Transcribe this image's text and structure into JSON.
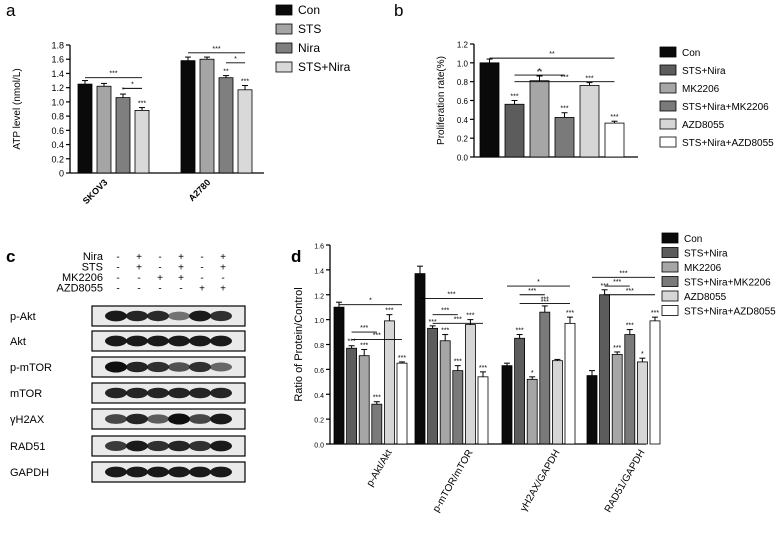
{
  "panels": {
    "a": {
      "label": "a",
      "chart_data": {
        "type": "bar",
        "ylabel": "ATP level (nmol/L)",
        "ylim": [
          0,
          1.8
        ],
        "yticks": [
          "0",
          "0.2",
          "0.4",
          "0.6",
          "0.8",
          "1.0",
          "1.2",
          "1.4",
          "1.6",
          "1.8"
        ],
        "categories": [
          "SKOV3",
          "A2780"
        ],
        "series": [
          {
            "name": "Con",
            "values": [
              1.25,
              1.58
            ],
            "errors": [
              0.05,
              0.05
            ],
            "sig": [
              "",
              ""
            ]
          },
          {
            "name": "STS",
            "values": [
              1.22,
              1.6
            ],
            "errors": [
              0.04,
              0.03
            ],
            "sig": [
              "",
              ""
            ]
          },
          {
            "name": "Nira",
            "values": [
              1.06,
              1.34
            ],
            "errors": [
              0.05,
              0.03
            ],
            "sig": [
              "*",
              "**"
            ]
          },
          {
            "name": "STS+Nira",
            "values": [
              0.88,
              1.17
            ],
            "errors": [
              0.04,
              0.06
            ],
            "sig": [
              "***",
              "***"
            ]
          }
        ],
        "brackets": [
          {
            "cat": 0,
            "from": 0,
            "to": 3,
            "y": 1.34,
            "label": "***"
          },
          {
            "cat": 0,
            "from": 2,
            "to": 3,
            "y": 1.19,
            "label": "*"
          },
          {
            "cat": 1,
            "from": 0,
            "to": 3,
            "y": 1.69,
            "label": "***"
          },
          {
            "cat": 1,
            "from": 2,
            "to": 3,
            "y": 1.55,
            "label": "*"
          }
        ]
      }
    },
    "b": {
      "label": "b",
      "chart_data": {
        "type": "bar",
        "ylabel": "Proliferation rate(%)",
        "ylim": [
          0,
          1.2
        ],
        "yticks": [
          "0.0",
          "0.2",
          "0.4",
          "0.6",
          "0.8",
          "1.0",
          "1.2"
        ],
        "categories": [
          "Con",
          "STS+Nira",
          "MK2206",
          "STS+Nira+MK2206",
          "AZD8055",
          "STS+Nira+AZD8055"
        ],
        "values": [
          1.0,
          0.56,
          0.81,
          0.42,
          0.76,
          0.36
        ],
        "errors": [
          0.04,
          0.04,
          0.05,
          0.05,
          0.03,
          0.02
        ],
        "sig": [
          "",
          "***",
          "**",
          "***",
          "***",
          "***"
        ],
        "brackets": [
          {
            "from": 1,
            "to": 3,
            "y": 0.87,
            "label": "*"
          },
          {
            "from": 1,
            "to": 5,
            "y": 0.8,
            "label": "***"
          },
          {
            "from": 0,
            "to": 5,
            "y": 1.05,
            "label": "**"
          }
        ]
      }
    },
    "c": {
      "label": "c",
      "rows": [
        {
          "name": "Nira",
          "marks": [
            "-",
            "+",
            "-",
            "+",
            "-",
            "+"
          ]
        },
        {
          "name": "STS",
          "marks": [
            "-",
            "+",
            "-",
            "+",
            "-",
            "+"
          ]
        },
        {
          "name": "MK2206",
          "marks": [
            "-",
            "-",
            "+",
            "+",
            "-",
            "-"
          ]
        },
        {
          "name": "AZD8055",
          "marks": [
            "-",
            "-",
            "-",
            "-",
            "+",
            "+"
          ]
        }
      ],
      "blots": [
        "p-Akt",
        "Akt",
        "p-mTOR",
        "mTOR",
        "γH2AX",
        "RAD51",
        "GAPDH"
      ],
      "intensities": [
        [
          0.95,
          0.9,
          0.88,
          0.55,
          0.95,
          0.85
        ],
        [
          0.95,
          0.95,
          0.95,
          0.95,
          0.95,
          0.95
        ],
        [
          1.0,
          0.9,
          0.85,
          0.7,
          0.85,
          0.6
        ],
        [
          0.9,
          0.9,
          0.9,
          0.9,
          0.9,
          0.9
        ],
        [
          0.75,
          0.9,
          0.65,
          1.0,
          0.75,
          0.95
        ],
        [
          0.8,
          0.95,
          0.85,
          0.9,
          0.85,
          0.95
        ],
        [
          0.95,
          0.95,
          0.95,
          0.95,
          0.95,
          0.95
        ]
      ]
    },
    "d": {
      "label": "d",
      "chart_data": {
        "type": "bar",
        "ylabel": "Ratio of Protein/Control",
        "ylim": [
          0,
          1.6
        ],
        "yticks": [
          "0.0",
          "0.2",
          "0.4",
          "0.6",
          "0.8",
          "1.0",
          "1.2",
          "1.4",
          "1.6"
        ],
        "categories": [
          "p-Akt/Akt",
          "p-mTOR/mTOR",
          "γH2AX/GAPDH",
          "RAD51/GAPDH"
        ],
        "series": [
          {
            "name": "Con",
            "values": [
              1.1,
              1.37,
              0.63,
              0.55
            ],
            "errors": [
              0.04,
              0.06,
              0.02,
              0.04
            ],
            "sig": [
              "",
              "",
              "",
              ""
            ]
          },
          {
            "name": "STS+Nira",
            "values": [
              0.77,
              0.93,
              0.85,
              1.2
            ],
            "errors": [
              0.02,
              0.02,
              0.03,
              0.04
            ],
            "sig": [
              "***",
              "***",
              "***",
              "***"
            ]
          },
          {
            "name": "MK2206",
            "values": [
              0.71,
              0.83,
              0.52,
              0.72
            ],
            "errors": [
              0.05,
              0.05,
              0.02,
              0.02
            ],
            "sig": [
              "***",
              "***",
              "*",
              "***"
            ]
          },
          {
            "name": "STS+Nira+MK2206",
            "values": [
              0.32,
              0.59,
              1.06,
              0.88
            ],
            "errors": [
              0.02,
              0.04,
              0.05,
              0.04
            ],
            "sig": [
              "***",
              "***",
              "***",
              "***"
            ]
          },
          {
            "name": "AZD8055",
            "values": [
              0.99,
              0.96,
              0.67,
              0.66
            ],
            "errors": [
              0.05,
              0.04,
              0.01,
              0.03
            ],
            "sig": [
              "***",
              "***",
              "",
              "*"
            ]
          },
          {
            "name": "STS+Nira+AZD8055",
            "values": [
              0.65,
              0.54,
              0.97,
              0.99
            ],
            "errors": [
              0.01,
              0.04,
              0.05,
              0.03
            ],
            "sig": [
              "***",
              "***",
              "***",
              "***"
            ]
          }
        ],
        "brackets": [
          {
            "cat": 0,
            "from": 1,
            "to": 3,
            "y": 0.9,
            "label": "***"
          },
          {
            "cat": 0,
            "from": 1,
            "to": 5,
            "y": 0.84,
            "label": "***"
          },
          {
            "cat": 0,
            "from": 0,
            "to": 5,
            "y": 1.12,
            "label": "*"
          },
          {
            "cat": 1,
            "from": 1,
            "to": 3,
            "y": 1.04,
            "label": "***"
          },
          {
            "cat": 1,
            "from": 1,
            "to": 5,
            "y": 0.97,
            "label": "***"
          },
          {
            "cat": 1,
            "from": 0,
            "to": 5,
            "y": 1.17,
            "label": "***"
          },
          {
            "cat": 2,
            "from": 1,
            "to": 3,
            "y": 1.2,
            "label": "***"
          },
          {
            "cat": 2,
            "from": 1,
            "to": 5,
            "y": 1.13,
            "label": "***"
          },
          {
            "cat": 2,
            "from": 0,
            "to": 5,
            "y": 1.27,
            "label": "*"
          },
          {
            "cat": 3,
            "from": 1,
            "to": 3,
            "y": 1.27,
            "label": "***"
          },
          {
            "cat": 3,
            "from": 1,
            "to": 5,
            "y": 1.2,
            "label": "***"
          },
          {
            "cat": 3,
            "from": 0,
            "to": 5,
            "y": 1.34,
            "label": "***"
          }
        ]
      }
    }
  },
  "colors": {
    "a": [
      "#0a0a0a",
      "#a5a5a5",
      "#7f7f7f",
      "#d9d9d9"
    ],
    "b": [
      "#0a0a0a",
      "#5c5c5c",
      "#a6a6a6",
      "#7a7a7a",
      "#d6d6d6",
      "#ffffff"
    ],
    "d": [
      "#0a0a0a",
      "#5c5c5c",
      "#a6a6a6",
      "#7a7a7a",
      "#d6d6d6",
      "#ffffff"
    ]
  }
}
